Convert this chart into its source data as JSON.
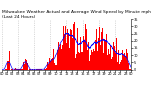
{
  "title": "Milwaukee Weather Actual and Average Wind Speed by Minute mph (Last 24 Hours)",
  "background_color": "#ffffff",
  "bar_color": "#ff0000",
  "line_color": "#0000ff",
  "grid_color": "#bbbbbb",
  "num_points": 1440,
  "ylim": [
    0,
    35
  ],
  "yticks": [
    0,
    5,
    10,
    15,
    20,
    25,
    30,
    35
  ],
  "title_fontsize": 3.2,
  "axis_fontsize": 2.8,
  "tick_fontsize": 2.5
}
